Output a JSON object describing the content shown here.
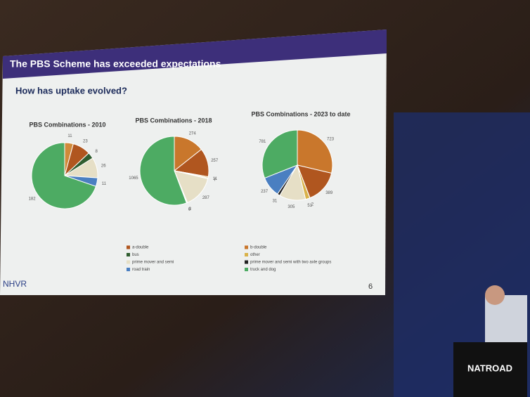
{
  "slide": {
    "title": "The PBS Scheme has exceeded expectations",
    "subtitle": "How has uptake evolved?",
    "page_number": "6",
    "logo": "NHVR"
  },
  "chart_data": [
    {
      "type": "pie",
      "title": "PBS Combinations - 2010",
      "values": [
        11,
        23,
        8,
        26,
        11,
        182
      ],
      "colors": [
        "#d08a3a",
        "#b0561f",
        "#2f5d2f",
        "#e6dfc6",
        "#4a7fc1",
        "#4dab63"
      ]
    },
    {
      "type": "pie",
      "title": "PBS Combinations - 2018",
      "values": [
        274,
        257,
        11,
        7,
        287,
        3,
        6,
        1065
      ],
      "colors": [
        "#c9772c",
        "#b0561f",
        "#d9b24a",
        "#2f5d2f",
        "#e6dfc6",
        "#222222",
        "#4a7fc1",
        "#4dab63"
      ]
    },
    {
      "type": "pie",
      "title": "PBS Combinations - 2023 to date",
      "values": [
        723,
        389,
        2,
        51,
        305,
        31,
        237,
        781
      ],
      "colors": [
        "#c9772c",
        "#b0561f",
        "#2f5d2f",
        "#d9b24a",
        "#e6dfc6",
        "#222222",
        "#4a7fc1",
        "#4dab63"
      ]
    }
  ],
  "legend_left": [
    {
      "label": "a-double",
      "color": "#b0561f"
    },
    {
      "label": "bus",
      "color": "#2f5d2f"
    },
    {
      "label": "prime mover and semi",
      "color": "#e6dfc6"
    },
    {
      "label": "road train",
      "color": "#4a7fc1"
    }
  ],
  "legend_right": [
    {
      "label": "b-double",
      "color": "#c9772c"
    },
    {
      "label": "other",
      "color": "#d9b24a"
    },
    {
      "label": "prime mover and semi with two axle groups",
      "color": "#222222"
    },
    {
      "label": "truck and dog",
      "color": "#4dab63"
    }
  ],
  "banner": "NATROAD"
}
